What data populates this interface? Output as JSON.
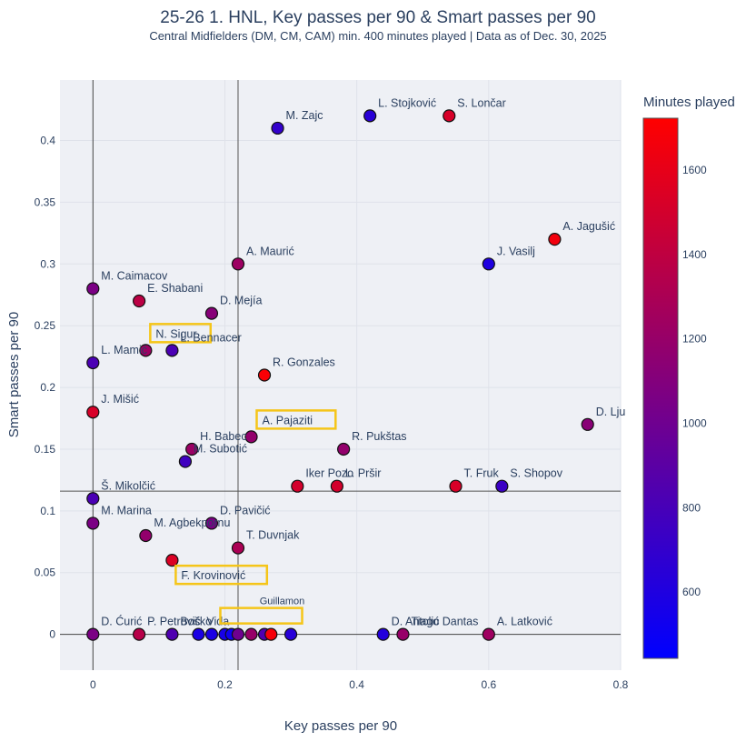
{
  "chart_data": {
    "type": "scatter",
    "title": "25-26 1. HNL, Key passes per 90 & Smart passes per 90",
    "subtitle": "Central Midfielders (DM, CM, CAM) min. 400 minutes played | Data as of Dec. 30, 2025",
    "xlabel": "Key passes per 90",
    "ylabel": "Smart passes per 90",
    "xlim": [
      -0.05,
      0.8
    ],
    "ylim": [
      -0.029,
      0.449
    ],
    "xticks": [
      0,
      0.2,
      0.4,
      0.6,
      0.8
    ],
    "yticks": [
      0,
      0.05,
      0.1,
      0.15,
      0.2,
      0.25,
      0.3,
      0.35,
      0.4
    ],
    "grid": true,
    "reference_lines": {
      "x_mean": 0.22,
      "y_mean": 0.116
    },
    "colorbar": {
      "title": "Minutes played",
      "min": 443,
      "max": 1723,
      "ticks": [
        600,
        800,
        1000,
        1200,
        1400,
        1600
      ],
      "colors": [
        "#0000ff",
        "#ff0000"
      ]
    },
    "highlight_color": "#f5c518",
    "points": [
      {
        "name": "M. Zajc",
        "x": 0.28,
        "y": 0.41,
        "minutes": 700
      },
      {
        "name": "L. Stojković",
        "x": 0.42,
        "y": 0.42,
        "minutes": 650
      },
      {
        "name": "S. Lončar",
        "x": 0.54,
        "y": 0.42,
        "minutes": 1520
      },
      {
        "name": "A. Jagušić",
        "x": 0.7,
        "y": 0.32,
        "minutes": 1660
      },
      {
        "name": "J. Vasilj",
        "x": 0.6,
        "y": 0.3,
        "minutes": 600
      },
      {
        "name": "A. Maurić",
        "x": 0.22,
        "y": 0.3,
        "minutes": 1230
      },
      {
        "name": "M. Caimacov",
        "x": 0.0,
        "y": 0.28,
        "minutes": 1060
      },
      {
        "name": "E. Shabani",
        "x": 0.07,
        "y": 0.27,
        "minutes": 1380
      },
      {
        "name": "D. Mejía",
        "x": 0.18,
        "y": 0.26,
        "minutes": 1120
      },
      {
        "name": "N. Sigur",
        "x": 0.08,
        "y": 0.23,
        "minutes": 1230,
        "highlight": true
      },
      {
        "name": "L. Bennacer",
        "x": 0.12,
        "y": 0.23,
        "minutes": 820
      },
      {
        "name": "L. Mamić",
        "x": 0.0,
        "y": 0.22,
        "minutes": 820
      },
      {
        "name": "R. Gonzales",
        "x": 0.26,
        "y": 0.21,
        "minutes": 1700
      },
      {
        "name": "J. Mišić",
        "x": 0.0,
        "y": 0.18,
        "minutes": 1520
      },
      {
        "name": "D. Lju",
        "x": 0.75,
        "y": 0.17,
        "minutes": 1130
      },
      {
        "name": "A. Pajaziti",
        "x": 0.24,
        "y": 0.16,
        "minutes": 1180,
        "highlight": true
      },
      {
        "name": "H. Babec",
        "x": 0.15,
        "y": 0.15,
        "minutes": 1220
      },
      {
        "name": "R. Pukštas",
        "x": 0.38,
        "y": 0.15,
        "minutes": 1180
      },
      {
        "name": "M. Subotić",
        "x": 0.14,
        "y": 0.14,
        "minutes": 760
      },
      {
        "name": "Iker Pozo",
        "x": 0.31,
        "y": 0.12,
        "minutes": 1500
      },
      {
        "name": "L. Pršir",
        "x": 0.37,
        "y": 0.12,
        "minutes": 1500
      },
      {
        "name": "T. Fruk",
        "x": 0.55,
        "y": 0.12,
        "minutes": 1520
      },
      {
        "name": "S. Shopov",
        "x": 0.62,
        "y": 0.12,
        "minutes": 740
      },
      {
        "name": "Š. Mikolčić",
        "x": 0.0,
        "y": 0.11,
        "minutes": 820
      },
      {
        "name": "M. Marina",
        "x": 0.0,
        "y": 0.09,
        "minutes": 1060
      },
      {
        "name": "M. Agbekpornu",
        "x": 0.08,
        "y": 0.08,
        "minutes": 1180
      },
      {
        "name": "D. Pavičić",
        "x": 0.18,
        "y": 0.09,
        "minutes": 1060
      },
      {
        "name": "T. Duvnjak",
        "x": 0.22,
        "y": 0.07,
        "minutes": 1300
      },
      {
        "name": "F. Krovinović",
        "x": 0.12,
        "y": 0.06,
        "minutes": 1540,
        "highlight": true
      },
      {
        "name": "D. Ćurić",
        "x": 0.0,
        "y": 0.0,
        "minutes": 1060
      },
      {
        "name": "P. Petrović",
        "x": 0.07,
        "y": 0.0,
        "minutes": 1360
      },
      {
        "name": "Boško",
        "x": 0.12,
        "y": 0.0,
        "minutes": 840
      },
      {
        "name": "Vida",
        "x": 0.16,
        "y": 0.0,
        "minutes": 580
      },
      {
        "name": "",
        "x": 0.18,
        "y": 0.0,
        "minutes": 580
      },
      {
        "name": "",
        "x": 0.2,
        "y": 0.0,
        "minutes": 560
      },
      {
        "name": "",
        "x": 0.21,
        "y": 0.0,
        "minutes": 520
      },
      {
        "name": "",
        "x": 0.22,
        "y": 0.0,
        "minutes": 1000
      },
      {
        "name": "Guillamon",
        "x": 0.24,
        "y": 0.0,
        "minutes": 1200,
        "highlight": true
      },
      {
        "name": "",
        "x": 0.26,
        "y": 0.0,
        "minutes": 840
      },
      {
        "name": "",
        "x": 0.27,
        "y": 0.0,
        "minutes": 1680
      },
      {
        "name": "",
        "x": 0.3,
        "y": 0.0,
        "minutes": 640
      },
      {
        "name": "D. Antolić",
        "x": 0.44,
        "y": 0.0,
        "minutes": 620
      },
      {
        "name": "Tiago Dantas",
        "x": 0.47,
        "y": 0.0,
        "minutes": 1200
      },
      {
        "name": "A. Latković",
        "x": 0.6,
        "y": 0.0,
        "minutes": 1240
      }
    ]
  }
}
